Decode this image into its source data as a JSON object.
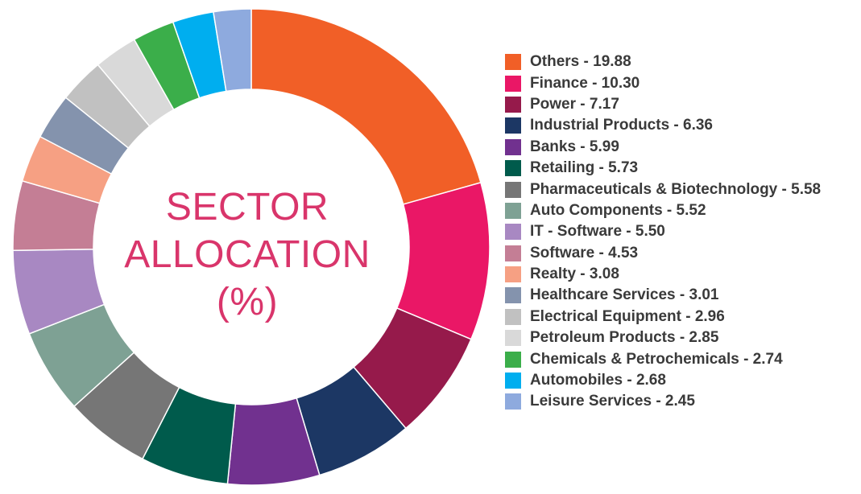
{
  "chart_data": {
    "type": "pie",
    "title_lines": [
      "SECTOR",
      "ALLOCATION",
      "(%)"
    ],
    "legend_placement": "right",
    "slices": [
      {
        "name": "Others",
        "value": 19.88,
        "label": "Others - 19.88",
        "color": "#f15f27"
      },
      {
        "name": "Finance",
        "value": 10.3,
        "label": "Finance - 10.30",
        "color": "#ea1766"
      },
      {
        "name": "Power",
        "value": 7.17,
        "label": "Power - 7.17",
        "color": "#961a4b"
      },
      {
        "name": "Industrial Products",
        "value": 6.36,
        "label": "Industrial Products - 6.36",
        "color": "#1c3764"
      },
      {
        "name": "Banks",
        "value": 5.99,
        "label": "Banks - 5.99",
        "color": "#71318f"
      },
      {
        "name": "Retailing",
        "value": 5.73,
        "label": "Retailing - 5.73",
        "color": "#005b4c"
      },
      {
        "name": "Pharmaceuticals & Biotechnology",
        "value": 5.58,
        "label": "Pharmaceuticals & Biotechnology - 5.58",
        "color": "#767676"
      },
      {
        "name": "Auto Components",
        "value": 5.52,
        "label": "Auto Components - 5.52",
        "color": "#7ea194"
      },
      {
        "name": "IT - Software",
        "value": 5.5,
        "label": "IT - Software - 5.50",
        "color": "#a888c2"
      },
      {
        "name": "Software",
        "value": 4.53,
        "label": "Software - 4.53",
        "color": "#c47e95"
      },
      {
        "name": "Realty",
        "value": 3.08,
        "label": "Realty - 3.08",
        "color": "#f6a083"
      },
      {
        "name": "Healthcare Services",
        "value": 3.01,
        "label": "Healthcare Services - 3.01",
        "color": "#8493ad"
      },
      {
        "name": "Electrical Equipment",
        "value": 2.96,
        "label": "Electrical Equipment - 2.96",
        "color": "#c1c1c1"
      },
      {
        "name": "Petroleum Products",
        "value": 2.85,
        "label": "Petroleum Products - 2.85",
        "color": "#d9d9d9"
      },
      {
        "name": "Chemicals & Petrochemicals",
        "value": 2.74,
        "label": "Chemicals & Petrochemicals - 2.74",
        "color": "#3bae4a"
      },
      {
        "name": "Automobiles",
        "value": 2.68,
        "label": "Automobiles - 2.68",
        "color": "#00aeef"
      },
      {
        "name": "Leisure Services",
        "value": 2.45,
        "label": "Leisure Services - 2.45",
        "color": "#8eaade"
      }
    ]
  }
}
